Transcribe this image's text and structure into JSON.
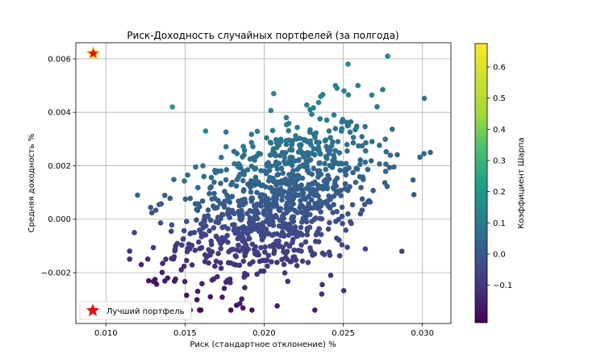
{
  "chart_data": {
    "type": "scatter",
    "title": "Риск-Доходность случайных портфелей (за полгода)",
    "xlabel": "Риск (стандартное отклонение) %",
    "ylabel": "Средняя доходность %",
    "xlim": [
      0.0081,
      0.0318
    ],
    "ylim": [
      -0.0039,
      0.0066
    ],
    "x_ticks": [
      0.01,
      0.015,
      0.02,
      0.025,
      0.03
    ],
    "x_tick_labels": [
      "0.010",
      "0.015",
      "0.020",
      "0.025",
      "0.030"
    ],
    "y_ticks": [
      -0.002,
      0.0,
      0.002,
      0.004,
      0.006
    ],
    "y_tick_labels": [
      "−0.002",
      "0.000",
      "0.002",
      "0.004",
      "0.006"
    ],
    "grid": true,
    "colorbar": {
      "label": "Коэффициент Шарпа",
      "range": [
        -0.22,
        0.675
      ],
      "ticks": [
        -0.1,
        0.0,
        0.1,
        0.2,
        0.3,
        0.4,
        0.5,
        0.6
      ],
      "tick_labels": [
        "−0.1",
        "0.0",
        "0.1",
        "0.2",
        "0.3",
        "0.4",
        "0.5",
        "0.6"
      ],
      "colormap": "viridis"
    },
    "legend": {
      "placement": "lower-left",
      "entries": [
        "Лучший портфель"
      ]
    },
    "best_portfolio": {
      "x": 0.0092,
      "y": 0.0062,
      "color": "#ff0000",
      "edge": "#ffd700"
    },
    "sample_points": [
      [
        0.0092,
        0.0062
      ],
      [
        0.0142,
        0.0042
      ],
      [
        0.0253,
        0.0058
      ],
      [
        0.0278,
        0.0061
      ],
      [
        0.0206,
        0.0047
      ],
      [
        0.0245,
        0.005
      ],
      [
        0.0246,
        0.0049
      ],
      [
        0.0305,
        0.0025
      ],
      [
        0.0118,
        -0.0005
      ],
      [
        0.0127,
        -0.0023
      ],
      [
        0.0139,
        -0.0022
      ],
      [
        0.0158,
        -0.0027
      ],
      [
        0.0166,
        -0.0029
      ],
      [
        0.0232,
        -0.0034
      ],
      [
        0.0242,
        -0.0021
      ],
      [
        0.0287,
        -0.0012
      ],
      [
        0.012,
        0.0009
      ],
      [
        0.0163,
        0.0033
      ],
      [
        0.0229,
        0.0041
      ],
      [
        0.0214,
        0.0038
      ]
    ],
    "series": [
      {
        "name": "",
        "type": "scatter",
        "x_center": 0.0208,
        "y_center": 0.0006,
        "x_sd": 0.0031,
        "y_sd": 0.0014,
        "count": 1000
      }
    ]
  }
}
